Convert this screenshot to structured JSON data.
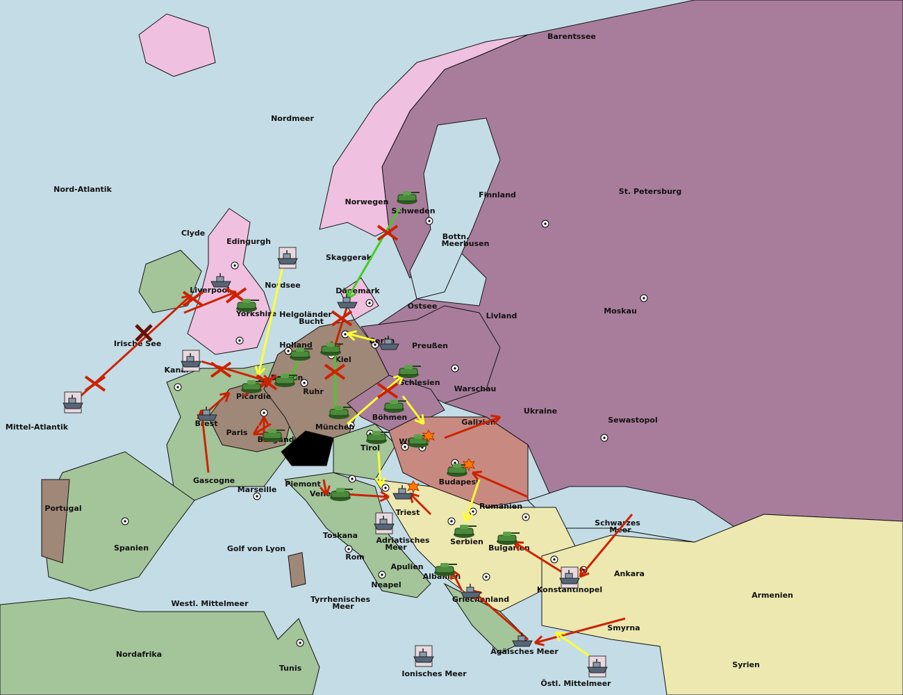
{
  "colors": {
    "sea": "#c4dce6",
    "russia": "#a87d9c",
    "england": "#f0c0e0",
    "germany": "#a08878",
    "france": "#a4c49a",
    "austria": "#c88a80",
    "neutral": "#ece8b0",
    "switzerland": "#000000",
    "order_move": "#cc2200",
    "order_support": "#ffff33",
    "order_alt": "#44cc22",
    "army": "#4a8a3a",
    "fleet": "#556677"
  },
  "labels": [
    "Barentssee",
    "Nordmeer",
    "Nord-Atlantik",
    "St. Petersburg",
    "Finnland",
    "Norwegen",
    "Schweden",
    "Clyde",
    "Edingurgh",
    "Bottn.",
    "Meerbusen",
    "Skaggerak",
    "Nordsee",
    "Liverpool",
    "Dänemark",
    "Ostsee",
    "Moskau",
    "Yorkshire",
    "Helgoländer",
    "Bucht",
    "Livland",
    "Irische See",
    "Holland",
    "Berlin",
    "Preußen",
    "Kiel",
    "Kanal",
    "Belgien",
    "Schlesien",
    "Warschau",
    "Ruhr",
    "Picardie",
    "Ukraine",
    "Böhmen",
    "Sewastopol",
    "Mittel-Atlantik",
    "Brest",
    "Galizien",
    "München",
    "Paris",
    "Burgund",
    "Wien",
    "Tirol",
    "Gascogne",
    "Budapest",
    "Piemont",
    "Marseille",
    "Venedig",
    "Rumänien",
    "Portugal",
    "Triest",
    "Schwarzes",
    "Meer",
    "Toskana",
    "Adriatisches",
    "Meer",
    "Serbien",
    "Spanien",
    "Golf von Lyon",
    "Bulgarien",
    "Rom",
    "Apulien",
    "Ankara",
    "Albanien",
    "Neapel",
    "Konstantinopel",
    "Armenien",
    "Griechenland",
    "Westl. Mittelmeer",
    "Tyrrhenisches",
    "Meer",
    "Smyrna",
    "Ägäisches Meer",
    "Nordafrika",
    "Syrien",
    "Tunis",
    "Ionisches Meer",
    "Östl. Mittelmeer"
  ],
  "units": [
    {
      "type": "army",
      "region": "Schweden"
    },
    {
      "type": "army",
      "region": "Yorkshire"
    },
    {
      "type": "army",
      "region": "Holland"
    },
    {
      "type": "army",
      "region": "Kiel"
    },
    {
      "type": "army",
      "region": "Belgien"
    },
    {
      "type": "army",
      "region": "Picardie"
    },
    {
      "type": "army",
      "region": "Burgund"
    },
    {
      "type": "army",
      "region": "Schlesien"
    },
    {
      "type": "army",
      "region": "Böhmen"
    },
    {
      "type": "army",
      "region": "München"
    },
    {
      "type": "army",
      "region": "Tirol"
    },
    {
      "type": "army",
      "region": "Wien"
    },
    {
      "type": "army",
      "region": "Budapest"
    },
    {
      "type": "army",
      "region": "Venedig"
    },
    {
      "type": "army",
      "region": "Serbien"
    },
    {
      "type": "army",
      "region": "Bulgarien"
    },
    {
      "type": "army",
      "region": "Albanien"
    },
    {
      "type": "fleet",
      "region": "Liverpool"
    },
    {
      "type": "fleet",
      "region": "Dänemark"
    },
    {
      "type": "fleet",
      "region": "Berlin"
    },
    {
      "type": "fleet",
      "region": "Brest"
    },
    {
      "type": "fleet",
      "region": "Triest"
    },
    {
      "type": "fleet",
      "region": "Griechenland"
    },
    {
      "type": "fleet",
      "region": "Ägäisches Meer"
    },
    {
      "type": "fleet-dislodged",
      "region": "Nordsee"
    },
    {
      "type": "fleet-dislodged",
      "region": "Kanal"
    },
    {
      "type": "fleet-dislodged",
      "region": "Mittel-Atlantik"
    },
    {
      "type": "fleet-dislodged",
      "region": "Adriatisches Meer"
    },
    {
      "type": "fleet-dislodged",
      "region": "Konstantinopel"
    },
    {
      "type": "fleet-dislodged",
      "region": "Ionisches Meer"
    },
    {
      "type": "fleet-dislodged",
      "region": "Östl. Mittelmeer"
    }
  ]
}
